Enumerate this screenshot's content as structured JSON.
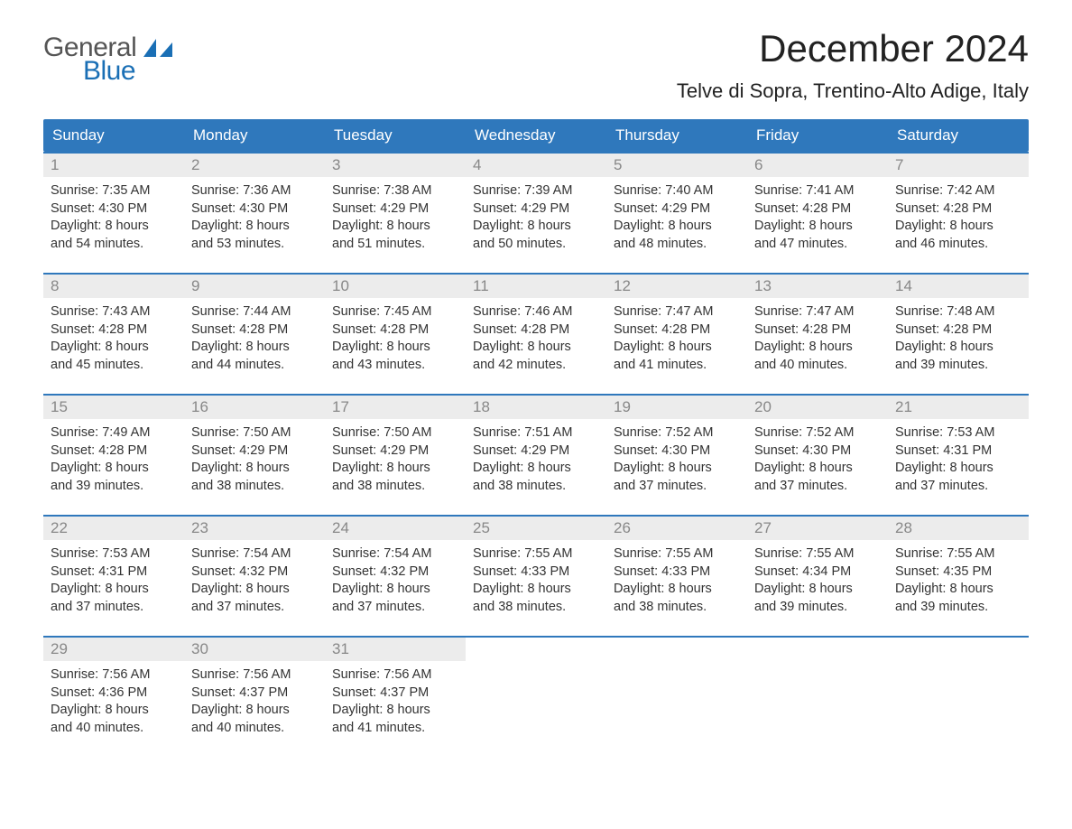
{
  "logo": {
    "text1": "General",
    "text2": "Blue",
    "color_general": "#555555",
    "color_blue": "#1a6fb5",
    "sail_color": "#1a6fb5"
  },
  "header": {
    "month_title": "December 2024",
    "location": "Telve di Sopra, Trentino-Alto Adige, Italy"
  },
  "styling": {
    "header_bg": "#2f78bc",
    "header_text": "#ffffff",
    "daynum_bg": "#ececec",
    "daynum_text": "#888888",
    "row_border": "#2f78bc",
    "body_text": "#333333",
    "page_bg": "#ffffff",
    "title_fontsize": 42,
    "location_fontsize": 22,
    "dayheader_fontsize": 17,
    "body_fontsize": 14.5
  },
  "day_names": [
    "Sunday",
    "Monday",
    "Tuesday",
    "Wednesday",
    "Thursday",
    "Friday",
    "Saturday"
  ],
  "weeks": [
    [
      {
        "num": "1",
        "sunrise": "Sunrise: 7:35 AM",
        "sunset": "Sunset: 4:30 PM",
        "dl1": "Daylight: 8 hours",
        "dl2": "and 54 minutes."
      },
      {
        "num": "2",
        "sunrise": "Sunrise: 7:36 AM",
        "sunset": "Sunset: 4:30 PM",
        "dl1": "Daylight: 8 hours",
        "dl2": "and 53 minutes."
      },
      {
        "num": "3",
        "sunrise": "Sunrise: 7:38 AM",
        "sunset": "Sunset: 4:29 PM",
        "dl1": "Daylight: 8 hours",
        "dl2": "and 51 minutes."
      },
      {
        "num": "4",
        "sunrise": "Sunrise: 7:39 AM",
        "sunset": "Sunset: 4:29 PM",
        "dl1": "Daylight: 8 hours",
        "dl2": "and 50 minutes."
      },
      {
        "num": "5",
        "sunrise": "Sunrise: 7:40 AM",
        "sunset": "Sunset: 4:29 PM",
        "dl1": "Daylight: 8 hours",
        "dl2": "and 48 minutes."
      },
      {
        "num": "6",
        "sunrise": "Sunrise: 7:41 AM",
        "sunset": "Sunset: 4:28 PM",
        "dl1": "Daylight: 8 hours",
        "dl2": "and 47 minutes."
      },
      {
        "num": "7",
        "sunrise": "Sunrise: 7:42 AM",
        "sunset": "Sunset: 4:28 PM",
        "dl1": "Daylight: 8 hours",
        "dl2": "and 46 minutes."
      }
    ],
    [
      {
        "num": "8",
        "sunrise": "Sunrise: 7:43 AM",
        "sunset": "Sunset: 4:28 PM",
        "dl1": "Daylight: 8 hours",
        "dl2": "and 45 minutes."
      },
      {
        "num": "9",
        "sunrise": "Sunrise: 7:44 AM",
        "sunset": "Sunset: 4:28 PM",
        "dl1": "Daylight: 8 hours",
        "dl2": "and 44 minutes."
      },
      {
        "num": "10",
        "sunrise": "Sunrise: 7:45 AM",
        "sunset": "Sunset: 4:28 PM",
        "dl1": "Daylight: 8 hours",
        "dl2": "and 43 minutes."
      },
      {
        "num": "11",
        "sunrise": "Sunrise: 7:46 AM",
        "sunset": "Sunset: 4:28 PM",
        "dl1": "Daylight: 8 hours",
        "dl2": "and 42 minutes."
      },
      {
        "num": "12",
        "sunrise": "Sunrise: 7:47 AM",
        "sunset": "Sunset: 4:28 PM",
        "dl1": "Daylight: 8 hours",
        "dl2": "and 41 minutes."
      },
      {
        "num": "13",
        "sunrise": "Sunrise: 7:47 AM",
        "sunset": "Sunset: 4:28 PM",
        "dl1": "Daylight: 8 hours",
        "dl2": "and 40 minutes."
      },
      {
        "num": "14",
        "sunrise": "Sunrise: 7:48 AM",
        "sunset": "Sunset: 4:28 PM",
        "dl1": "Daylight: 8 hours",
        "dl2": "and 39 minutes."
      }
    ],
    [
      {
        "num": "15",
        "sunrise": "Sunrise: 7:49 AM",
        "sunset": "Sunset: 4:28 PM",
        "dl1": "Daylight: 8 hours",
        "dl2": "and 39 minutes."
      },
      {
        "num": "16",
        "sunrise": "Sunrise: 7:50 AM",
        "sunset": "Sunset: 4:29 PM",
        "dl1": "Daylight: 8 hours",
        "dl2": "and 38 minutes."
      },
      {
        "num": "17",
        "sunrise": "Sunrise: 7:50 AM",
        "sunset": "Sunset: 4:29 PM",
        "dl1": "Daylight: 8 hours",
        "dl2": "and 38 minutes."
      },
      {
        "num": "18",
        "sunrise": "Sunrise: 7:51 AM",
        "sunset": "Sunset: 4:29 PM",
        "dl1": "Daylight: 8 hours",
        "dl2": "and 38 minutes."
      },
      {
        "num": "19",
        "sunrise": "Sunrise: 7:52 AM",
        "sunset": "Sunset: 4:30 PM",
        "dl1": "Daylight: 8 hours",
        "dl2": "and 37 minutes."
      },
      {
        "num": "20",
        "sunrise": "Sunrise: 7:52 AM",
        "sunset": "Sunset: 4:30 PM",
        "dl1": "Daylight: 8 hours",
        "dl2": "and 37 minutes."
      },
      {
        "num": "21",
        "sunrise": "Sunrise: 7:53 AM",
        "sunset": "Sunset: 4:31 PM",
        "dl1": "Daylight: 8 hours",
        "dl2": "and 37 minutes."
      }
    ],
    [
      {
        "num": "22",
        "sunrise": "Sunrise: 7:53 AM",
        "sunset": "Sunset: 4:31 PM",
        "dl1": "Daylight: 8 hours",
        "dl2": "and 37 minutes."
      },
      {
        "num": "23",
        "sunrise": "Sunrise: 7:54 AM",
        "sunset": "Sunset: 4:32 PM",
        "dl1": "Daylight: 8 hours",
        "dl2": "and 37 minutes."
      },
      {
        "num": "24",
        "sunrise": "Sunrise: 7:54 AM",
        "sunset": "Sunset: 4:32 PM",
        "dl1": "Daylight: 8 hours",
        "dl2": "and 37 minutes."
      },
      {
        "num": "25",
        "sunrise": "Sunrise: 7:55 AM",
        "sunset": "Sunset: 4:33 PM",
        "dl1": "Daylight: 8 hours",
        "dl2": "and 38 minutes."
      },
      {
        "num": "26",
        "sunrise": "Sunrise: 7:55 AM",
        "sunset": "Sunset: 4:33 PM",
        "dl1": "Daylight: 8 hours",
        "dl2": "and 38 minutes."
      },
      {
        "num": "27",
        "sunrise": "Sunrise: 7:55 AM",
        "sunset": "Sunset: 4:34 PM",
        "dl1": "Daylight: 8 hours",
        "dl2": "and 39 minutes."
      },
      {
        "num": "28",
        "sunrise": "Sunrise: 7:55 AM",
        "sunset": "Sunset: 4:35 PM",
        "dl1": "Daylight: 8 hours",
        "dl2": "and 39 minutes."
      }
    ],
    [
      {
        "num": "29",
        "sunrise": "Sunrise: 7:56 AM",
        "sunset": "Sunset: 4:36 PM",
        "dl1": "Daylight: 8 hours",
        "dl2": "and 40 minutes."
      },
      {
        "num": "30",
        "sunrise": "Sunrise: 7:56 AM",
        "sunset": "Sunset: 4:37 PM",
        "dl1": "Daylight: 8 hours",
        "dl2": "and 40 minutes."
      },
      {
        "num": "31",
        "sunrise": "Sunrise: 7:56 AM",
        "sunset": "Sunset: 4:37 PM",
        "dl1": "Daylight: 8 hours",
        "dl2": "and 41 minutes."
      },
      {
        "empty": true
      },
      {
        "empty": true
      },
      {
        "empty": true
      },
      {
        "empty": true
      }
    ]
  ]
}
